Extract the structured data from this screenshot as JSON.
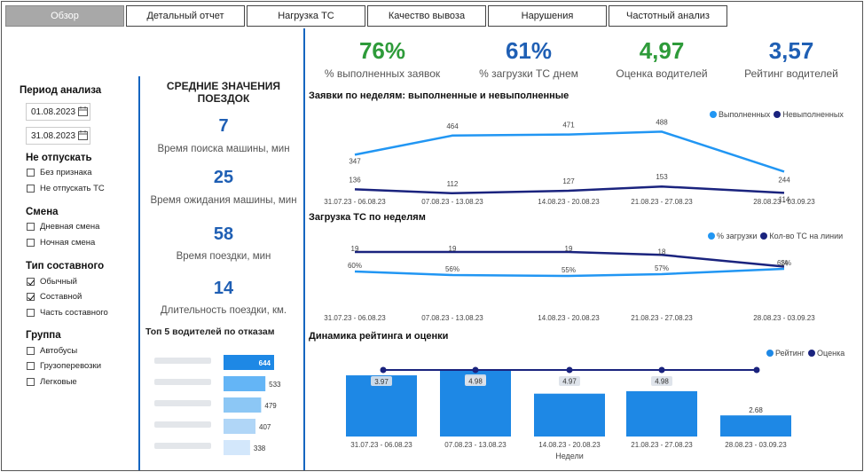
{
  "tabs": [
    {
      "label": "Обзор",
      "active": true
    },
    {
      "label": "Детальный отчет",
      "active": false
    },
    {
      "label": "Нагрузка ТС",
      "active": false
    },
    {
      "label": "Качество вывоза",
      "active": false
    },
    {
      "label": "Нарушения",
      "active": false
    },
    {
      "label": "Частотный анализ",
      "active": false
    }
  ],
  "filters": {
    "period_title": "Период анализа",
    "date_from": "01.08.2023",
    "date_to": "31.08.2023",
    "release_title": "Не отпускать",
    "release_items": [
      {
        "label": "Без признака",
        "checked": false
      },
      {
        "label": "Не отпускать ТС",
        "checked": false
      }
    ],
    "shift_title": "Смена",
    "shift_items": [
      {
        "label": "Дневная смена",
        "checked": false
      },
      {
        "label": "Ночная смена",
        "checked": false
      }
    ],
    "type_title": "Тип составного",
    "type_items": [
      {
        "label": "Обычный",
        "checked": true
      },
      {
        "label": "Составной",
        "checked": true
      },
      {
        "label": "Часть составного",
        "checked": false
      }
    ],
    "group_title": "Группа",
    "group_items": [
      {
        "label": "Автобусы",
        "checked": false
      },
      {
        "label": "Грузоперевозки",
        "checked": false
      },
      {
        "label": "Легковые",
        "checked": false
      }
    ]
  },
  "averages": {
    "title": "СРЕДНИЕ ЗНАЧЕНИЯ ПОЕЗДОК",
    "items": [
      {
        "value": "7",
        "caption": "Время поиска машины, мин"
      },
      {
        "value": "25",
        "caption": "Время ожидания машины, мин"
      },
      {
        "value": "58",
        "caption": "Время поездки, мин"
      },
      {
        "value": "14",
        "caption": "Длительность поездки, км."
      }
    ]
  },
  "kpis": [
    {
      "value": "76%",
      "caption": "% выполненных заявок",
      "color": "#2e9b3a"
    },
    {
      "value": "61%",
      "caption": "% загрузки ТС днем",
      "color": "#1f5fb4"
    },
    {
      "value": "4,97",
      "caption": "Оценка водителей",
      "color": "#2e9b3a"
    },
    {
      "value": "3,57",
      "caption": "Рейтинг водителей",
      "color": "#1f5fb4"
    }
  ],
  "colors": {
    "light": "#2196f3",
    "dark": "#1a237e",
    "bar": "#1e88e5",
    "separator": "#1565c0"
  },
  "chart_data": [
    {
      "type": "line",
      "title": "Заявки по неделям: выполненные и невыполненные",
      "categories": [
        "31.07.23 - 06.08.23",
        "07.08.23 - 13.08.23",
        "14.08.23 - 20.08.23",
        "21.08.23 - 27.08.23",
        "28.08.23 - 03.09.23"
      ],
      "series": [
        {
          "name": "Выполненных",
          "values": [
            347,
            464,
            471,
            488,
            244
          ]
        },
        {
          "name": "Невыполненных",
          "values": [
            136,
            112,
            127,
            153,
            114
          ]
        }
      ],
      "legend": "top-right"
    },
    {
      "type": "line",
      "title": "Загрузка ТС по неделям",
      "categories": [
        "31.07.23 - 06.08.23",
        "07.08.23 - 13.08.23",
        "14.08.23 - 20.08.23",
        "21.08.23 - 27.08.23",
        "28.08.23 - 03.09.23"
      ],
      "series": [
        {
          "name": "% загрузки",
          "values": [
            "60%",
            "56%",
            "55%",
            "57%",
            "63%"
          ]
        },
        {
          "name": "Кол-во ТС на линии",
          "values": [
            19,
            19,
            19,
            18,
            14
          ]
        }
      ],
      "legend": "top-right"
    },
    {
      "type": "bar",
      "title": "Динамика рейтинга и оценки",
      "xlabel": "Недели",
      "categories": [
        "31.07.23 - 06.08.23",
        "07.08.23 - 13.08.23",
        "14.08.23 - 20.08.23",
        "21.08.23 - 27.08.23",
        "28.08.23 - 03.09.23"
      ],
      "series": [
        {
          "name": "Рейтинг",
          "values": [
            3.97,
            4.15,
            3.38,
            3.46,
            2.68
          ]
        },
        {
          "name": "Оценка",
          "values": [
            null,
            4.98,
            4.97,
            4.98,
            null
          ]
        }
      ],
      "legend": "top-right"
    },
    {
      "type": "bar",
      "title": "Топ 5 водителей по отказам",
      "categories": [
        "",
        "",
        "",
        "",
        ""
      ],
      "values": [
        644,
        533,
        479,
        407,
        338
      ]
    }
  ]
}
